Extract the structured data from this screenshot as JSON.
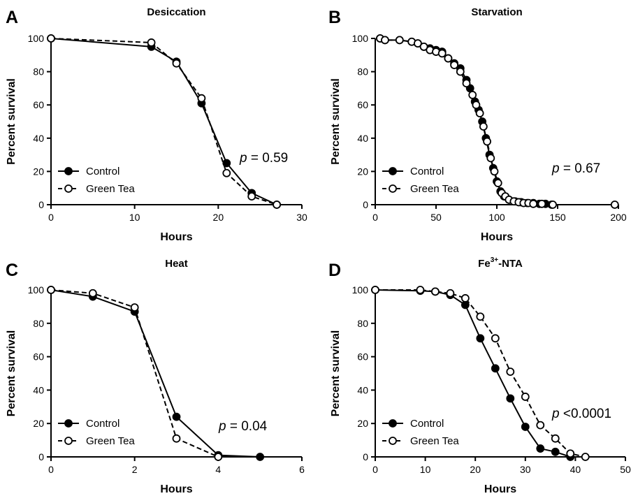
{
  "chart_data": [
    {
      "type": "line",
      "letter": "A",
      "title": "Desiccation",
      "xlabel": "Hours",
      "ylabel": "Percent survival",
      "xlim": [
        0,
        30
      ],
      "ylim": [
        0,
        100
      ],
      "xticks": [
        0,
        10,
        20,
        30
      ],
      "yticks": [
        0,
        20,
        40,
        60,
        80,
        100
      ],
      "annotation": {
        "italic": "p",
        "text": " = 0.59"
      },
      "legend_position": "bottom-left",
      "series": [
        {
          "name": "Control",
          "marker": "filled-circle",
          "line": "solid",
          "x": [
            0,
            12,
            15,
            18,
            21,
            24,
            27
          ],
          "y": [
            100,
            95,
            86,
            61,
            25,
            7,
            0
          ]
        },
        {
          "name": "Green Tea",
          "marker": "open-circle",
          "line": "dashed",
          "x": [
            0,
            12,
            15,
            18,
            21,
            24,
            27
          ],
          "y": [
            100,
            97.5,
            85,
            64,
            19,
            5,
            0
          ]
        }
      ]
    },
    {
      "type": "line",
      "letter": "B",
      "title": "Starvation",
      "xlabel": "Hours",
      "ylabel": "Percent survival",
      "xlim": [
        0,
        200
      ],
      "ylim": [
        0,
        100
      ],
      "xticks": [
        0,
        50,
        100,
        150,
        200
      ],
      "yticks": [
        0,
        20,
        40,
        60,
        80,
        100
      ],
      "annotation": {
        "italic": "p",
        "text": " = 0.67"
      },
      "legend_position": "bottom-left",
      "series": [
        {
          "name": "Control",
          "marker": "filled-circle",
          "line": "solid",
          "x": [
            4,
            8,
            20,
            30,
            35,
            40,
            45,
            50,
            55,
            60,
            65,
            70,
            75,
            78,
            82,
            85,
            88,
            91,
            94,
            97,
            100,
            103,
            106,
            110,
            115,
            120,
            125,
            130,
            135,
            140,
            145
          ],
          "y": [
            100,
            99,
            99,
            98,
            97,
            95,
            94,
            93,
            92,
            88,
            85,
            82,
            75,
            70,
            62,
            57,
            50,
            40,
            30,
            22,
            14,
            8,
            5,
            3,
            2,
            1.5,
            1,
            1,
            0.5,
            0.5,
            0
          ]
        },
        {
          "name": "Green Tea",
          "marker": "open-circle",
          "line": "dashed",
          "x": [
            4,
            8,
            20,
            30,
            35,
            40,
            45,
            50,
            55,
            60,
            65,
            70,
            75,
            80,
            83,
            86,
            89,
            92,
            95,
            98,
            101,
            104,
            107,
            110,
            114,
            118,
            122,
            126,
            130,
            137,
            146,
            197
          ],
          "y": [
            100,
            99,
            99,
            98,
            97,
            95,
            93,
            92,
            91,
            88,
            84,
            80,
            73,
            66,
            60,
            55,
            47,
            38,
            28,
            20,
            13,
            7,
            5,
            3,
            2,
            1.5,
            1,
            1,
            0.5,
            0.5,
            0,
            0
          ]
        }
      ]
    },
    {
      "type": "line",
      "letter": "C",
      "title": "Heat",
      "xlabel": "Hours",
      "ylabel": "Percent survival",
      "xlim": [
        0,
        6
      ],
      "ylim": [
        0,
        100
      ],
      "xticks": [
        0,
        2,
        4,
        6
      ],
      "yticks": [
        0,
        20,
        40,
        60,
        80,
        100
      ],
      "annotation": {
        "italic": "p",
        "text": " = 0.04"
      },
      "legend_position": "bottom-left",
      "series": [
        {
          "name": "Control",
          "marker": "filled-circle",
          "line": "solid",
          "x": [
            0,
            1,
            2,
            3,
            4,
            5
          ],
          "y": [
            100,
            96,
            87,
            24,
            1,
            0
          ]
        },
        {
          "name": "Green Tea",
          "marker": "open-circle",
          "line": "dashed",
          "x": [
            0,
            1,
            2,
            3,
            4
          ],
          "y": [
            100,
            98,
            89.5,
            11,
            0
          ]
        }
      ]
    },
    {
      "type": "line",
      "letter": "D",
      "title": "Fe",
      "title_sup": "3+",
      "title_suffix": "-NTA",
      "xlabel": "Hours",
      "ylabel": "Percent survival",
      "xlim": [
        0,
        50
      ],
      "ylim": [
        0,
        100
      ],
      "xticks": [
        0,
        10,
        20,
        30,
        40,
        50
      ],
      "yticks": [
        0,
        20,
        40,
        60,
        80,
        100
      ],
      "annotation": {
        "italic": "p",
        "text": " <0.0001"
      },
      "legend_position": "bottom-left",
      "series": [
        {
          "name": "Control",
          "marker": "filled-circle",
          "line": "solid",
          "x": [
            0,
            9,
            12,
            15,
            18,
            21,
            24,
            27,
            30,
            33,
            36,
            39
          ],
          "y": [
            100,
            99.5,
            99,
            97,
            91,
            71,
            53,
            35,
            18,
            5,
            3,
            0
          ]
        },
        {
          "name": "Green Tea",
          "marker": "open-circle",
          "line": "dashed",
          "x": [
            0,
            9,
            12,
            15,
            18,
            21,
            24,
            27,
            30,
            33,
            36,
            39,
            42
          ],
          "y": [
            100,
            100,
            99,
            98,
            95,
            84,
            71,
            51,
            36,
            19,
            11,
            2,
            0
          ]
        }
      ]
    }
  ]
}
